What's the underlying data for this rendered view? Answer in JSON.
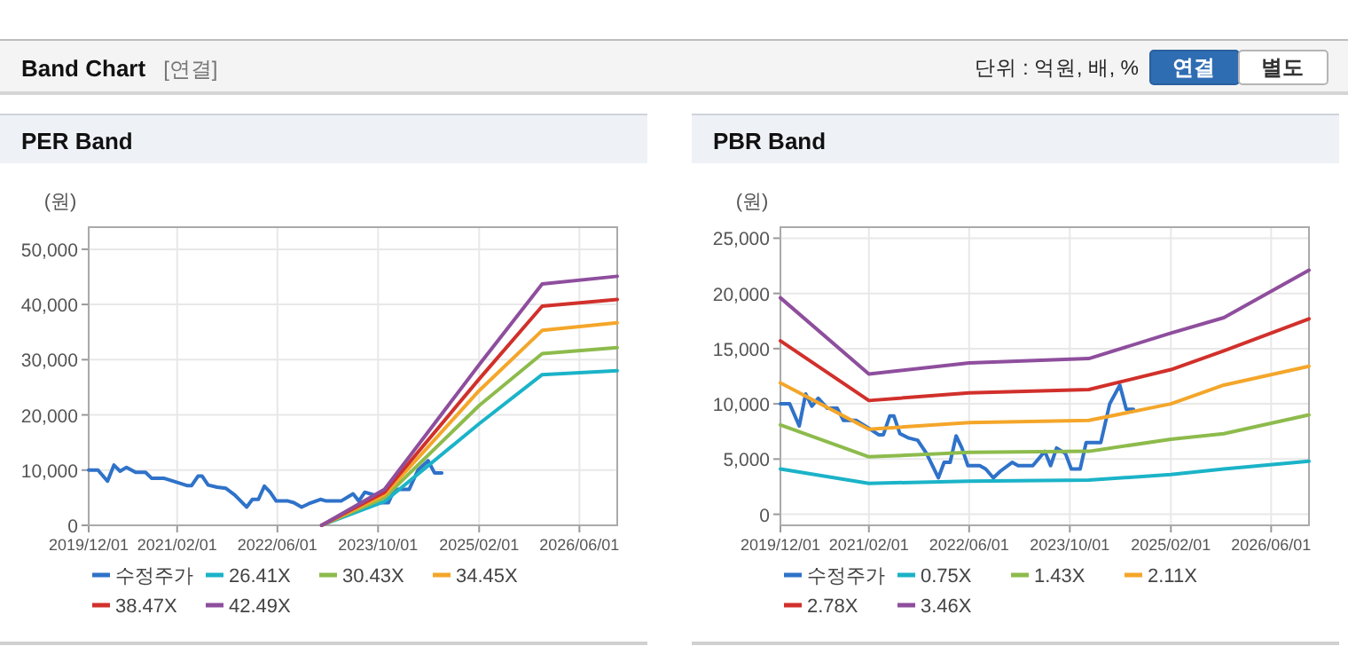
{
  "chart_data": [
    {
      "type": "other",
      "title": "Band Chart",
      "subtitle": "[연결]",
      "annotations": [
        "단위 : 억원, 배, %",
        "연결",
        "별도"
      ]
    },
    {
      "type": "line",
      "title": "PER Band",
      "ylabel": "(원)",
      "grid": true,
      "legend": "bottom",
      "xlim": [
        "2019-12-01",
        "2026-12-01"
      ],
      "xticks": [
        {
          "value": "2019-12-01",
          "label": "2019/12/01"
        },
        {
          "value": "2021-02-01",
          "label": "2021/02/01"
        },
        {
          "value": "2022-06-01",
          "label": "2022/06/01"
        },
        {
          "value": "2023-10-01",
          "label": "2023/10/01"
        },
        {
          "value": "2025-02-01",
          "label": "2025/02/01"
        },
        {
          "value": "2026-06-01",
          "label": "2026/06/01"
        }
      ],
      "ylim": [
        0,
        54000
      ],
      "yticks": [
        0,
        {
          "value": 10000,
          "label": "10,000"
        },
        {
          "value": 20000,
          "label": "20,000"
        },
        {
          "value": 30000,
          "label": "30,000"
        },
        {
          "value": 40000,
          "label": "40,000"
        },
        {
          "value": 50000,
          "label": "50,000"
        }
      ],
      "series": [
        {
          "name": "수정주가",
          "color": "#2f72c9",
          "x": [
            "2019-12-01",
            "2020-01-15",
            "2020-03-01",
            "2020-04-01",
            "2020-05-01",
            "2020-06-01",
            "2020-07-15",
            "2020-09-01",
            "2020-10-01",
            "2020-12-01",
            "2021-02-08",
            "2021-03-20",
            "2021-04-12",
            "2021-05-13",
            "2021-06-02",
            "2021-07-01",
            "2021-08-13",
            "2021-09-25",
            "2021-11-07",
            "2022-01-03",
            "2022-01-31",
            "2022-03-01",
            "2022-03-30",
            "2022-04-27",
            "2022-05-26",
            "2022-07-22",
            "2022-08-20",
            "2022-09-26",
            "2022-10-30",
            "2022-12-26",
            "2023-01-24",
            "2023-04-05",
            "2023-06-02",
            "2023-06-30",
            "2023-07-29",
            "2023-09-10",
            "2023-10-08",
            "2023-11-20",
            "2023-12-19",
            "2024-02-28",
            "2024-04-11",
            "2024-05-30",
            "2024-06-30",
            "2024-08-04"
          ],
          "values": [
            10000,
            10000,
            8000,
            10900,
            9800,
            10500,
            9600,
            9600,
            8500,
            8500,
            7700,
            7200,
            7200,
            8900,
            8900,
            7300,
            6900,
            6700,
            5500,
            3300,
            4700,
            4700,
            7100,
            6000,
            4400,
            4400,
            4100,
            3300,
            3900,
            4700,
            4400,
            4400,
            5700,
            4400,
            6000,
            5500,
            4100,
            4100,
            6500,
            6500,
            10000,
            11700,
            9500,
            9500
          ]
        },
        {
          "name": "26.41X",
          "color": "#1bb3c8",
          "x": [
            "2023-01-01",
            "2023-11-01",
            "2025-02-01",
            "2025-12-03",
            "2026-12-01"
          ],
          "values": [
            0,
            4300,
            18400,
            27300,
            28000
          ]
        },
        {
          "name": "30.43X",
          "color": "#8dbb4c",
          "x": [
            "2023-01-01",
            "2023-11-01",
            "2025-02-01",
            "2025-12-03",
            "2026-12-01"
          ],
          "values": [
            0,
            5000,
            21700,
            31100,
            32200
          ]
        },
        {
          "name": "34.45X",
          "color": "#f4a62a",
          "x": [
            "2023-01-01",
            "2023-11-01",
            "2025-02-01",
            "2025-12-03",
            "2026-12-01"
          ],
          "values": [
            0,
            5500,
            24400,
            35300,
            36700
          ]
        },
        {
          "name": "38.47X",
          "color": "#d1302b",
          "x": [
            "2023-01-01",
            "2023-11-01",
            "2025-02-01",
            "2025-12-03",
            "2026-12-01"
          ],
          "values": [
            0,
            6000,
            26500,
            39700,
            40900
          ]
        },
        {
          "name": "42.49X",
          "color": "#8e4e9d",
          "x": [
            "2023-01-01",
            "2023-11-01",
            "2025-02-01",
            "2025-12-03",
            "2026-12-01"
          ],
          "values": [
            0,
            6500,
            29100,
            43700,
            45100
          ]
        }
      ]
    },
    {
      "type": "line",
      "title": "PBR Band",
      "ylabel": "(원)",
      "grid": true,
      "legend": "bottom",
      "xlim": [
        "2019-12-01",
        "2026-12-01"
      ],
      "xticks": [
        {
          "value": "2019-12-01",
          "label": "2019/12/01"
        },
        {
          "value": "2021-02-01",
          "label": "2021/02/01"
        },
        {
          "value": "2022-06-01",
          "label": "2022/06/01"
        },
        {
          "value": "2023-10-01",
          "label": "2023/10/01"
        },
        {
          "value": "2025-02-01",
          "label": "2025/02/01"
        },
        {
          "value": "2026-06-01",
          "label": "2026/06/01"
        }
      ],
      "ylim": [
        -1000,
        26000
      ],
      "yticks": [
        0,
        {
          "value": 5000,
          "label": "5,000"
        },
        {
          "value": 10000,
          "label": "10,000"
        },
        {
          "value": 15000,
          "label": "15,000"
        },
        {
          "value": 20000,
          "label": "20,000"
        },
        {
          "value": 25000,
          "label": "25,000"
        }
      ],
      "series": [
        {
          "name": "수정주가",
          "color": "#2f72c9",
          "x": [
            "2019-12-01",
            "2020-01-15",
            "2020-03-01",
            "2020-04-01",
            "2020-05-01",
            "2020-06-01",
            "2020-07-15",
            "2020-09-01",
            "2020-10-01",
            "2020-12-01",
            "2021-02-08",
            "2021-03-20",
            "2021-04-12",
            "2021-05-13",
            "2021-06-02",
            "2021-07-01",
            "2021-08-13",
            "2021-09-25",
            "2021-11-07",
            "2022-01-03",
            "2022-01-31",
            "2022-03-01",
            "2022-03-30",
            "2022-04-27",
            "2022-05-26",
            "2022-07-22",
            "2022-08-20",
            "2022-09-26",
            "2022-10-30",
            "2022-12-26",
            "2023-01-24",
            "2023-04-05",
            "2023-06-02",
            "2023-06-30",
            "2023-07-29",
            "2023-09-10",
            "2023-10-08",
            "2023-11-20",
            "2023-12-19",
            "2024-02-28",
            "2024-04-11",
            "2024-05-30",
            "2024-06-30",
            "2024-08-04"
          ],
          "values": [
            10000,
            10000,
            8000,
            10900,
            9800,
            10500,
            9600,
            9600,
            8500,
            8500,
            7700,
            7200,
            7200,
            8900,
            8900,
            7300,
            6900,
            6700,
            5500,
            3300,
            4700,
            4700,
            7100,
            6000,
            4400,
            4400,
            4100,
            3300,
            3900,
            4700,
            4400,
            4400,
            5700,
            4400,
            6000,
            5500,
            4100,
            4100,
            6500,
            6500,
            10000,
            11700,
            9500,
            9500
          ]
        },
        {
          "name": "0.75X",
          "color": "#1bb3c8",
          "x": [
            "2019-12-01",
            "2021-02-01",
            "2022-06-01",
            "2024-01-01",
            "2025-02-01",
            "2025-10-15",
            "2026-12-01"
          ],
          "values": [
            4100,
            2800,
            3000,
            3100,
            3600,
            4100,
            4800
          ]
        },
        {
          "name": "1.43X",
          "color": "#8dbb4c",
          "x": [
            "2019-12-01",
            "2021-02-01",
            "2022-06-01",
            "2024-01-01",
            "2025-02-01",
            "2025-10-15",
            "2026-12-01"
          ],
          "values": [
            8100,
            5200,
            5600,
            5700,
            6800,
            7300,
            9000
          ]
        },
        {
          "name": "2.11X",
          "color": "#f4a62a",
          "x": [
            "2019-12-01",
            "2021-02-01",
            "2022-06-01",
            "2024-01-01",
            "2025-02-01",
            "2025-10-15",
            "2026-12-01"
          ],
          "values": [
            11900,
            7700,
            8300,
            8500,
            10000,
            11700,
            13400
          ]
        },
        {
          "name": "2.78X",
          "color": "#d1302b",
          "x": [
            "2019-12-01",
            "2021-02-01",
            "2022-06-01",
            "2024-01-01",
            "2025-02-01",
            "2025-10-15",
            "2026-12-01"
          ],
          "values": [
            15700,
            10300,
            11000,
            11300,
            13100,
            14800,
            17700
          ]
        },
        {
          "name": "3.46X",
          "color": "#8e4e9d",
          "x": [
            "2019-12-01",
            "2021-02-01",
            "2022-06-01",
            "2024-01-01",
            "2025-02-01",
            "2025-10-15",
            "2026-12-01"
          ],
          "values": [
            19600,
            12700,
            13700,
            14100,
            16400,
            17800,
            22100
          ]
        }
      ]
    }
  ]
}
